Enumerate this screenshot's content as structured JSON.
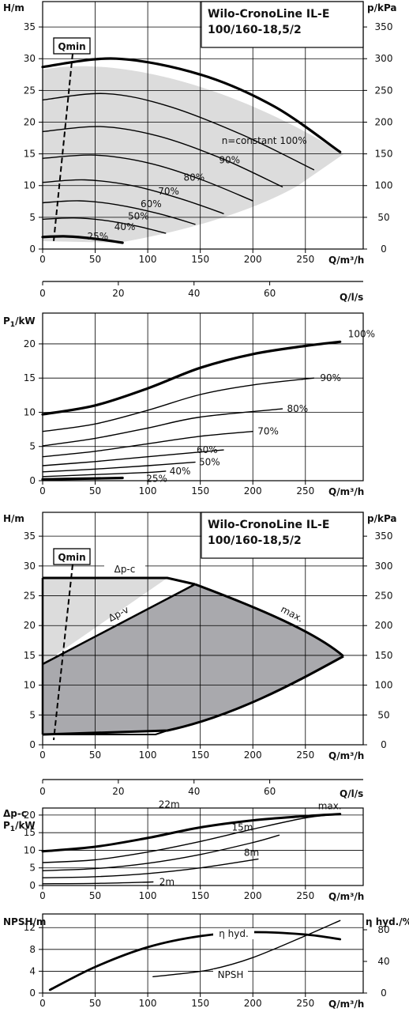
{
  "chart1": {
    "title_line1": "Wilo-CronoLine IL-E",
    "title_line2": "100/160-18,5/2",
    "qmin_label": "Qmin",
    "ylabel": "H/m",
    "ylabel_right": "p/kPa",
    "xlabel": "Q/m³/h"
  },
  "axis_ls_1": {
    "label": "Q/l/s"
  },
  "chart2": {
    "ylabel_main": "P",
    "ylabel_sub": "1",
    "ylabel_unit": "/kW",
    "xlabel": "Q/m³/h"
  },
  "chart3": {
    "title_line1": "Wilo-CronoLine IL-E",
    "title_line2": "100/160-18,5/2",
    "qmin_label": "Qmin",
    "ylabel": "H/m",
    "ylabel_right": "p/kPa",
    "xlabel": "Q/m³/h",
    "label_dpc": "Δp-c",
    "label_dpv": "Δp-v",
    "label_max": "max."
  },
  "axis_ls_2": {
    "label": "Q/l/s"
  },
  "chart4": {
    "ylabel_line1": "Δp-c",
    "ylabel_main": "P",
    "ylabel_sub": "1",
    "ylabel_unit": "/kW",
    "xlabel": "Q/m³/h"
  },
  "chart5": {
    "ylabel": "NPSH/m",
    "ylabel_right": "η hyd./%",
    "xlabel": "Q/m³/h",
    "label_eta": "η hyd.",
    "label_npsh": "NPSH"
  },
  "chart_data": [
    {
      "type": "line",
      "title": "Wilo-CronoLine IL-E 100/160-18,5/2",
      "xlabel": "Q/m³/h",
      "ylabel": "H/m",
      "ylabel_right": "p/kPa",
      "xlim": [
        0,
        305
      ],
      "ylim": [
        0,
        39
      ],
      "ylim_right": [
        0,
        390
      ],
      "xticks": [
        0,
        50,
        100,
        150,
        200,
        250
      ],
      "yticks": [
        0,
        5,
        10,
        15,
        20,
        25,
        30,
        35
      ],
      "yticks_right": [
        0,
        50,
        100,
        150,
        200,
        250,
        300,
        350
      ],
      "annotations": [
        "Qmin"
      ],
      "series": [
        {
          "name": "n=constant 100%",
          "x": [
            0,
            70,
            150,
            220,
            283
          ],
          "y": [
            28.7,
            30.0,
            27.5,
            22.5,
            15.3
          ]
        },
        {
          "name": "90%",
          "x": [
            0,
            60,
            120,
            190,
            258
          ],
          "y": [
            23.5,
            24.5,
            22.5,
            18.0,
            12.5
          ]
        },
        {
          "name": "80%",
          "x": [
            0,
            55,
            110,
            170,
            228
          ],
          "y": [
            18.5,
            19.3,
            17.8,
            14.3,
            9.8
          ]
        },
        {
          "name": "70%",
          "x": [
            0,
            50,
            100,
            150,
            200
          ],
          "y": [
            14.3,
            14.8,
            13.6,
            11.0,
            7.6
          ]
        },
        {
          "name": "60%",
          "x": [
            0,
            40,
            85,
            130,
            172
          ],
          "y": [
            10.5,
            10.9,
            10.0,
            8.0,
            5.6
          ]
        },
        {
          "name": "50%",
          "x": [
            0,
            35,
            70,
            110,
            145
          ],
          "y": [
            7.3,
            7.6,
            7.0,
            5.6,
            3.9
          ]
        },
        {
          "name": "40%",
          "x": [
            0,
            30,
            60,
            90,
            117
          ],
          "y": [
            4.7,
            4.9,
            4.5,
            3.6,
            2.5
          ]
        },
        {
          "name": "25%",
          "x": [
            0,
            20,
            40,
            60,
            76
          ],
          "y": [
            1.9,
            2.0,
            1.8,
            1.4,
            1.0
          ]
        }
      ]
    },
    {
      "type": "line",
      "xlabel": "Q/l/s",
      "xlim": [
        0,
        84.7
      ],
      "xticks": [
        0,
        20,
        40,
        60
      ]
    },
    {
      "type": "line",
      "xlabel": "Q/m³/h",
      "ylabel": "P1/kW",
      "xlim": [
        0,
        305
      ],
      "ylim": [
        0,
        24.5
      ],
      "xticks": [
        0,
        50,
        100,
        150,
        200,
        250
      ],
      "yticks": [
        0,
        5,
        10,
        15,
        20
      ],
      "series": [
        {
          "name": "100%",
          "x": [
            0,
            50,
            100,
            150,
            200,
            250,
            283
          ],
          "y": [
            9.7,
            11.0,
            13.5,
            16.5,
            18.5,
            19.7,
            20.3
          ]
        },
        {
          "name": "90%",
          "x": [
            0,
            50,
            100,
            150,
            200,
            258
          ],
          "y": [
            7.2,
            8.3,
            10.3,
            12.6,
            14.0,
            15.0
          ]
        },
        {
          "name": "80%",
          "x": [
            0,
            50,
            100,
            150,
            228
          ],
          "y": [
            5.1,
            6.2,
            7.7,
            9.3,
            10.5
          ]
        },
        {
          "name": "70%",
          "x": [
            0,
            50,
            100,
            150,
            200
          ],
          "y": [
            3.5,
            4.3,
            5.4,
            6.5,
            7.2
          ]
        },
        {
          "name": "60%",
          "x": [
            0,
            50,
            100,
            150,
            172
          ],
          "y": [
            2.2,
            2.8,
            3.5,
            4.2,
            4.5
          ]
        },
        {
          "name": "50%",
          "x": [
            0,
            50,
            100,
            145
          ],
          "y": [
            1.3,
            1.7,
            2.2,
            2.7
          ]
        },
        {
          "name": "40%",
          "x": [
            0,
            50,
            100,
            117
          ],
          "y": [
            0.6,
            0.9,
            1.2,
            1.4
          ]
        },
        {
          "name": "25%",
          "x": [
            0,
            40,
            76
          ],
          "y": [
            0.2,
            0.3,
            0.4
          ]
        }
      ]
    },
    {
      "type": "line",
      "title": "Wilo-CronoLine IL-E 100/160-18,5/2",
      "xlabel": "Q/m³/h",
      "ylabel": "H/m",
      "ylabel_right": "p/kPa",
      "xlim": [
        0,
        305
      ],
      "ylim": [
        0,
        39
      ],
      "ylim_right": [
        0,
        390
      ],
      "xticks": [
        0,
        50,
        100,
        150,
        200,
        250
      ],
      "yticks": [
        0,
        5,
        10,
        15,
        20,
        25,
        30,
        35
      ],
      "yticks_right": [
        0,
        50,
        100,
        150,
        200,
        250,
        300,
        350
      ],
      "annotations": [
        "Qmin",
        "Δp-c",
        "Δp-v",
        "max."
      ],
      "series": [
        {
          "name": "Δp-c",
          "x": [
            0,
            118,
            145
          ],
          "y": [
            29.0,
            29.0,
            27.8
          ]
        },
        {
          "name": "Δp-v",
          "x": [
            0,
            145
          ],
          "y": [
            14.0,
            27.8
          ]
        },
        {
          "name": "max.",
          "x": [
            145,
            220,
            283
          ],
          "y": [
            27.8,
            23.0,
            15.3
          ]
        }
      ]
    },
    {
      "type": "line",
      "xlabel": "Q/l/s",
      "xlim": [
        0,
        84.7
      ],
      "xticks": [
        0,
        20,
        40,
        60
      ]
    },
    {
      "type": "line",
      "xlabel": "Q/m³/h",
      "ylabel": "Δp-c P1/kW",
      "xlim": [
        0,
        305
      ],
      "ylim": [
        0,
        22
      ],
      "xticks": [
        0,
        50,
        100,
        150,
        200,
        250
      ],
      "yticks": [
        0,
        5,
        10,
        15,
        20
      ],
      "series": [
        {
          "name": "max.",
          "x": [
            0,
            50,
            100,
            150,
            200,
            250,
            283
          ],
          "y": [
            9.7,
            11.0,
            13.5,
            16.5,
            18.5,
            19.7,
            20.3
          ]
        },
        {
          "name": "22m",
          "x": [
            0,
            50,
            100,
            150,
            200,
            250,
            283
          ],
          "y": [
            6.5,
            7.3,
            9.5,
            12.5,
            16.0,
            19.2,
            20.3
          ]
        },
        {
          "name": "15m",
          "x": [
            0,
            50,
            100,
            150,
            200,
            225
          ],
          "y": [
            4.2,
            4.8,
            6.3,
            8.8,
            12.2,
            14.3
          ]
        },
        {
          "name": "8m",
          "x": [
            0,
            50,
            100,
            150,
            205
          ],
          "y": [
            2.2,
            2.5,
            3.4,
            5.0,
            7.5
          ]
        },
        {
          "name": "2m",
          "x": [
            0,
            50,
            105
          ],
          "y": [
            0.5,
            0.6,
            1.0
          ]
        }
      ]
    },
    {
      "type": "line",
      "xlabel": "Q/m³/h",
      "ylabel": "NPSH/m",
      "ylabel_right": "η hyd./%",
      "xlim": [
        0,
        305
      ],
      "ylim": [
        0,
        14.5
      ],
      "ylim_right": [
        0,
        100
      ],
      "xticks": [
        0,
        50,
        100,
        150,
        200,
        250
      ],
      "yticks": [
        0,
        4,
        8,
        12
      ],
      "yticks_right": [
        0,
        40,
        80
      ],
      "series": [
        {
          "name": "η hyd.",
          "axis": "right",
          "x": [
            7,
            50,
            100,
            150,
            200,
            250,
            283
          ],
          "y": [
            4,
            33,
            58,
            72,
            77,
            74,
            68
          ]
        },
        {
          "name": "NPSH",
          "axis": "left",
          "x": [
            105,
            125,
            160,
            200,
            250,
            283
          ],
          "y": [
            3.0,
            3.4,
            4.3,
            6.5,
            10.5,
            13.3
          ]
        }
      ]
    }
  ]
}
